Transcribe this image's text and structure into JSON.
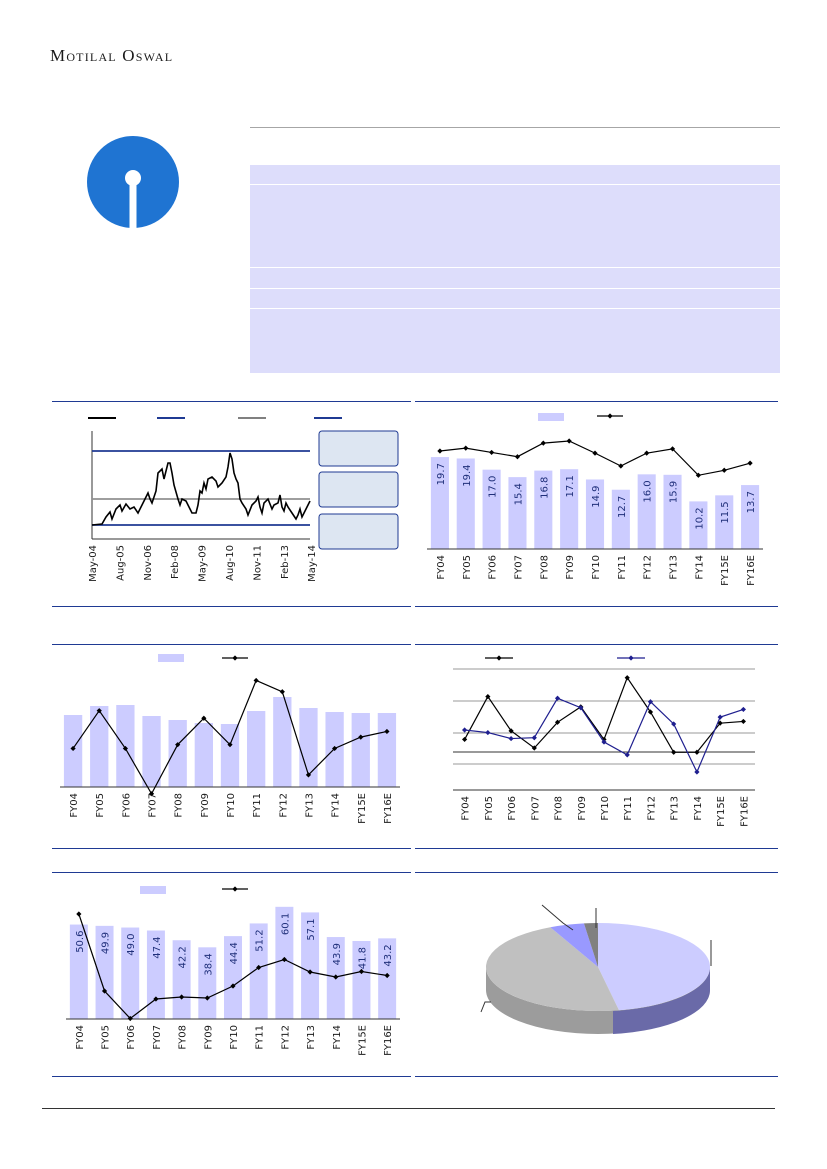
{
  "header": {
    "brand": "Motilal Oswal"
  },
  "colors": {
    "accent": "#1f3a93",
    "bar": "#ccccff",
    "logo": "#1f74d2",
    "box": "#ddddfb"
  },
  "logo": {
    "icon": "keyhole-logo-icon"
  },
  "charts": [
    {
      "id": "price-band",
      "type": "line",
      "x_ticks": [
        "May-04",
        "Aug-05",
        "Nov-06",
        "Feb-08",
        "May-09",
        "Aug-10",
        "Nov-11",
        "Feb-13",
        "May-14"
      ],
      "legend": [
        "",
        "",
        "",
        ""
      ],
      "band_lines": 3,
      "side_boxes": [
        "",
        "",
        ""
      ]
    },
    {
      "id": "chart-2",
      "type": "bar-line",
      "categories": [
        "FY04",
        "FY05",
        "FY06",
        "FY07",
        "FY08",
        "FY09",
        "FY10",
        "FY11",
        "FY12",
        "FY13",
        "FY14",
        "FY15E",
        "FY16E"
      ],
      "bar_values": [
        19.7,
        19.4,
        17.0,
        15.4,
        16.8,
        17.1,
        14.9,
        12.7,
        16.0,
        15.9,
        10.2,
        11.5,
        13.7
      ],
      "line_values": [
        3.2,
        3.4,
        3.1,
        2.8,
        3.75,
        3.9,
        3.05,
        2.15,
        3.05,
        3.35,
        1.5,
        1.85,
        2.35
      ],
      "bar_max": 30,
      "line_range": [
        -4.5,
        6.0
      ]
    },
    {
      "id": "chart-3",
      "type": "bar-line",
      "categories": [
        "FY04",
        "FY05",
        "FY06",
        "FY07",
        "FY08",
        "FY09",
        "FY10",
        "FY11",
        "FY12",
        "FY13",
        "FY14",
        "FY15E",
        "FY16E"
      ],
      "bar_values": [
        72,
        81,
        82,
        71,
        67,
        64,
        63,
        76,
        90,
        79,
        75,
        74,
        74
      ],
      "line_values": [
        3.5,
        4.5,
        3.5,
        2.3,
        3.6,
        4.3,
        3.6,
        5.3,
        5.0,
        2.8,
        3.5,
        3.8,
        3.95
      ],
      "bar_max": 100,
      "line_range": [
        1.5,
        6.0
      ]
    },
    {
      "id": "chart-4",
      "type": "line",
      "categories": [
        "FY04",
        "FY05",
        "FY06",
        "FY07",
        "FY08",
        "FY09",
        "FY10",
        "FY11",
        "FY12",
        "FY13",
        "FY14",
        "FY15E",
        "FY16E"
      ],
      "series": [
        {
          "values": [
            1.5,
            6.5,
            2.5,
            0.5,
            3.5,
            5.3,
            1.5,
            8.7,
            4.7,
            0.0,
            0.0,
            3.4,
            3.6
          ]
        },
        {
          "values": [
            2.6,
            2.3,
            1.6,
            1.7,
            6.3,
            5.2,
            1.2,
            -0.3,
            5.9,
            3.3,
            -2.3,
            4.1,
            5.0
          ]
        }
      ],
      "y_range": [
        -3,
        11
      ]
    },
    {
      "id": "chart-5",
      "type": "bar-line",
      "categories": [
        "FY04",
        "FY05",
        "FY06",
        "FY07",
        "FY08",
        "FY09",
        "FY10",
        "FY11",
        "FY12",
        "FY13",
        "FY14",
        "FY15E",
        "FY16E"
      ],
      "bar_values": [
        50.6,
        49.9,
        49.0,
        47.4,
        42.2,
        38.4,
        44.4,
        51.2,
        60.1,
        57.1,
        43.9,
        41.8,
        43.2
      ],
      "line_values": [
        21,
        5.6,
        0.1,
        4.0,
        4.4,
        4.2,
        6.6,
        10.3,
        11.9,
        9.4,
        8.4,
        9.5,
        8.7
      ],
      "bar_max": 60,
      "line_range": [
        0,
        22
      ]
    },
    {
      "id": "pie-chart",
      "type": "pie",
      "values": [
        47,
        46,
        5,
        2
      ],
      "colors": [
        "#ccccff",
        "#c0c0c0",
        "#9999ff",
        "#808080"
      ]
    }
  ]
}
